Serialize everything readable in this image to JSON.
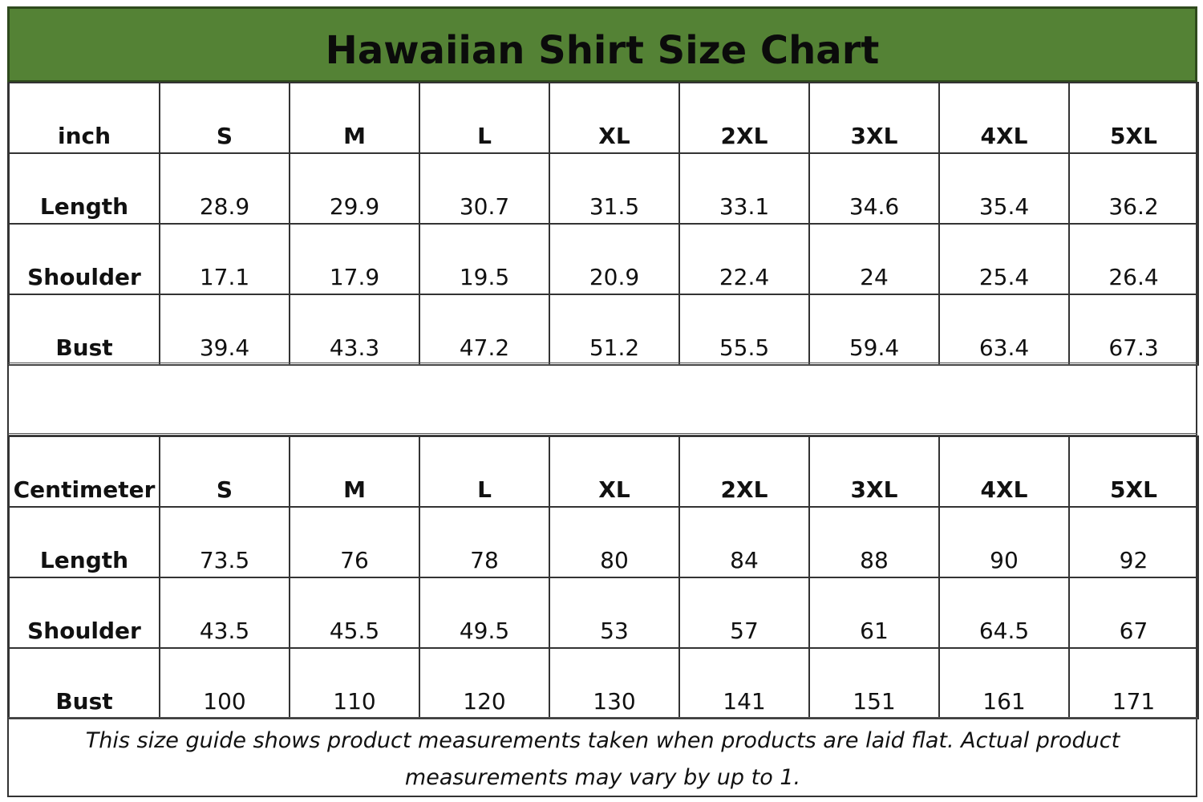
{
  "title": "Hawaiian Shirt Size Chart",
  "colors": {
    "header_bg": "#548235",
    "header_border": "#2f4a1d"
  },
  "sizes": [
    "S",
    "M",
    "L",
    "XL",
    "2XL",
    "3XL",
    "4XL",
    "5XL"
  ],
  "tables": [
    {
      "unit": "inch",
      "rows": [
        {
          "label": "Length",
          "values": [
            "28.9",
            "29.9",
            "30.7",
            "31.5",
            "33.1",
            "34.6",
            "35.4",
            "36.2"
          ]
        },
        {
          "label": "Shoulder",
          "values": [
            "17.1",
            "17.9",
            "19.5",
            "20.9",
            "22.4",
            "24",
            "25.4",
            "26.4"
          ]
        },
        {
          "label": "Bust",
          "values": [
            "39.4",
            "43.3",
            "47.2",
            "51.2",
            "55.5",
            "59.4",
            "63.4",
            "67.3"
          ]
        }
      ]
    },
    {
      "unit": "Centimeter",
      "rows": [
        {
          "label": "Length",
          "values": [
            "73.5",
            "76",
            "78",
            "80",
            "84",
            "88",
            "90",
            "92"
          ]
        },
        {
          "label": "Shoulder",
          "values": [
            "43.5",
            "45.5",
            "49.5",
            "53",
            "57",
            "61",
            "64.5",
            "67"
          ]
        },
        {
          "label": "Bust",
          "values": [
            "100",
            "110",
            "120",
            "130",
            "141",
            "151",
            "161",
            "171"
          ]
        }
      ]
    }
  ],
  "note": "This size guide shows product measurements taken when products are laid flat. Actual product measurements may vary by up to 1."
}
